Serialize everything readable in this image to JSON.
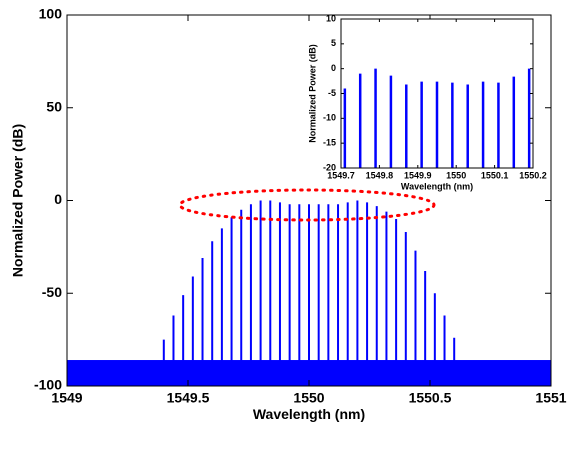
{
  "chart_data": [
    {
      "type": "comb",
      "xlabel": "Wavelength (nm)",
      "ylabel": "Normalized Power (dB)",
      "xlim": [
        1549,
        1551
      ],
      "xticks": [
        1549,
        1549.5,
        1550,
        1550.5,
        1551
      ],
      "ylim": [
        -100,
        100
      ],
      "yticks": [
        -100,
        -50,
        0,
        50,
        100
      ],
      "color": "#0000ff",
      "noise_floor_top": -86,
      "x": [
        1549.4,
        1549.44,
        1549.48,
        1549.52,
        1549.56,
        1549.6,
        1549.64,
        1549.68,
        1549.72,
        1549.76,
        1549.8,
        1549.84,
        1549.88,
        1549.92,
        1549.96,
        1550.0,
        1550.04,
        1550.08,
        1550.12,
        1550.16,
        1550.2,
        1550.24,
        1550.28,
        1550.32,
        1550.36,
        1550.4,
        1550.44,
        1550.48,
        1550.52,
        1550.56,
        1550.6
      ],
      "values": [
        -75,
        -62,
        -51,
        -41,
        -31,
        -22,
        -15,
        -9,
        -5,
        -2,
        0,
        0,
        -1,
        -2,
        -2,
        -2,
        -2,
        -2,
        -2,
        -1,
        0,
        -1,
        -3,
        -6,
        -10,
        -17,
        -27,
        -38,
        -50,
        -62,
        -74
      ]
    },
    {
      "type": "comb",
      "xlabel": "Wavelength (nm)",
      "ylabel": "Normalized Power (dB)",
      "xlim": [
        1549.7,
        1550.2
      ],
      "xticks": [
        1549.7,
        1549.8,
        1549.9,
        1550,
        1550.1,
        1550.2
      ],
      "ylim": [
        -20,
        10
      ],
      "yticks": [
        -20,
        -15,
        -10,
        -5,
        0,
        5,
        10
      ],
      "color": "#0000ff",
      "x": [
        1549.71,
        1549.75,
        1549.79,
        1549.83,
        1549.87,
        1549.91,
        1549.95,
        1549.99,
        1550.03,
        1550.07,
        1550.11,
        1550.15,
        1550.19
      ],
      "values": [
        -4,
        -1,
        0,
        -1.4,
        -3.2,
        -2.6,
        -2.6,
        -2.8,
        -3.2,
        -2.6,
        -2.8,
        -1.6,
        0
      ]
    }
  ]
}
